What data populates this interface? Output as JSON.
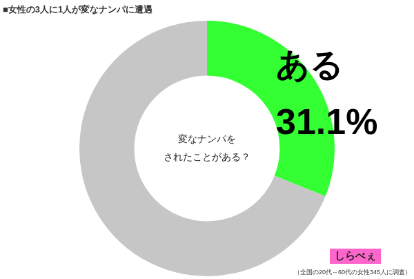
{
  "chart_data": {
    "type": "doughnut",
    "title": "■女性の3人に1人が変なナンパに遭遇",
    "center_text": [
      "変なナンパを",
      "されたことがある？"
    ],
    "categories": [
      "ある",
      null
    ],
    "values": [
      31.1,
      68.9
    ],
    "value_labels": [
      "31.1%",
      null
    ],
    "colors": [
      "#33ff33",
      "#c6c6c6"
    ],
    "data_labels": true,
    "source": "しらべぇ",
    "note": "（全国の20代～60代の女性345人に調査）"
  }
}
